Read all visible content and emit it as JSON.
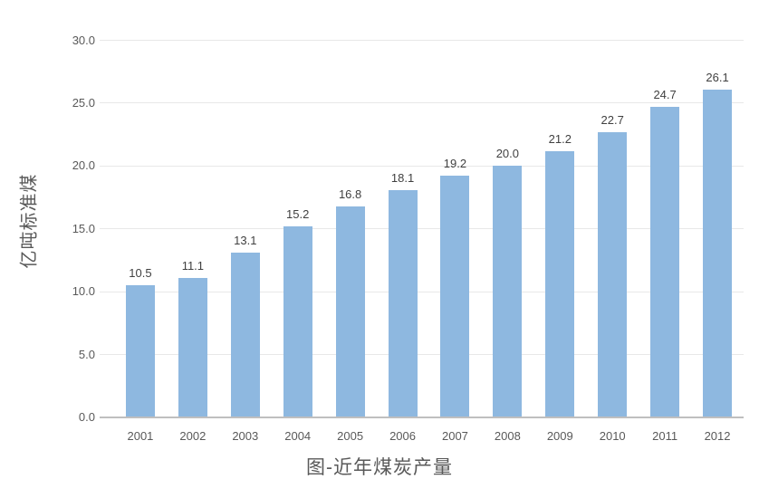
{
  "chart_data": {
    "type": "bar",
    "title": "图-近年煤炭产量",
    "xlabel": "",
    "ylabel": "亿吨标准煤",
    "categories": [
      "2001",
      "2002",
      "2003",
      "2004",
      "2005",
      "2006",
      "2007",
      "2008",
      "2009",
      "2010",
      "2011",
      "2012"
    ],
    "values": [
      10.5,
      11.1,
      13.1,
      15.2,
      16.8,
      18.1,
      19.2,
      20.0,
      21.2,
      22.7,
      24.7,
      26.1
    ],
    "data_labels": [
      "10.5",
      "11.1",
      "13.1",
      "15.2",
      "16.8",
      "18.1",
      "19.2",
      "20.0",
      "21.2",
      "22.7",
      "24.7",
      "26.1"
    ],
    "ylim": [
      0,
      30
    ],
    "yticks": [
      {
        "value": 0,
        "label": "0.0"
      },
      {
        "value": 5,
        "label": "5.0"
      },
      {
        "value": 10,
        "label": "10.0"
      },
      {
        "value": 15,
        "label": "15.0"
      },
      {
        "value": 20,
        "label": "20.0"
      },
      {
        "value": 25,
        "label": "25.0"
      },
      {
        "value": 30,
        "label": "30.0"
      }
    ],
    "grid": true,
    "legend": "none",
    "colors": {
      "bar": "#8EB8E0",
      "gridline": "#E8E8E8",
      "axis_line": "#BFBFBF",
      "tick_text": "#595959",
      "data_label_text": "#404040",
      "title_text": "#595959"
    }
  }
}
